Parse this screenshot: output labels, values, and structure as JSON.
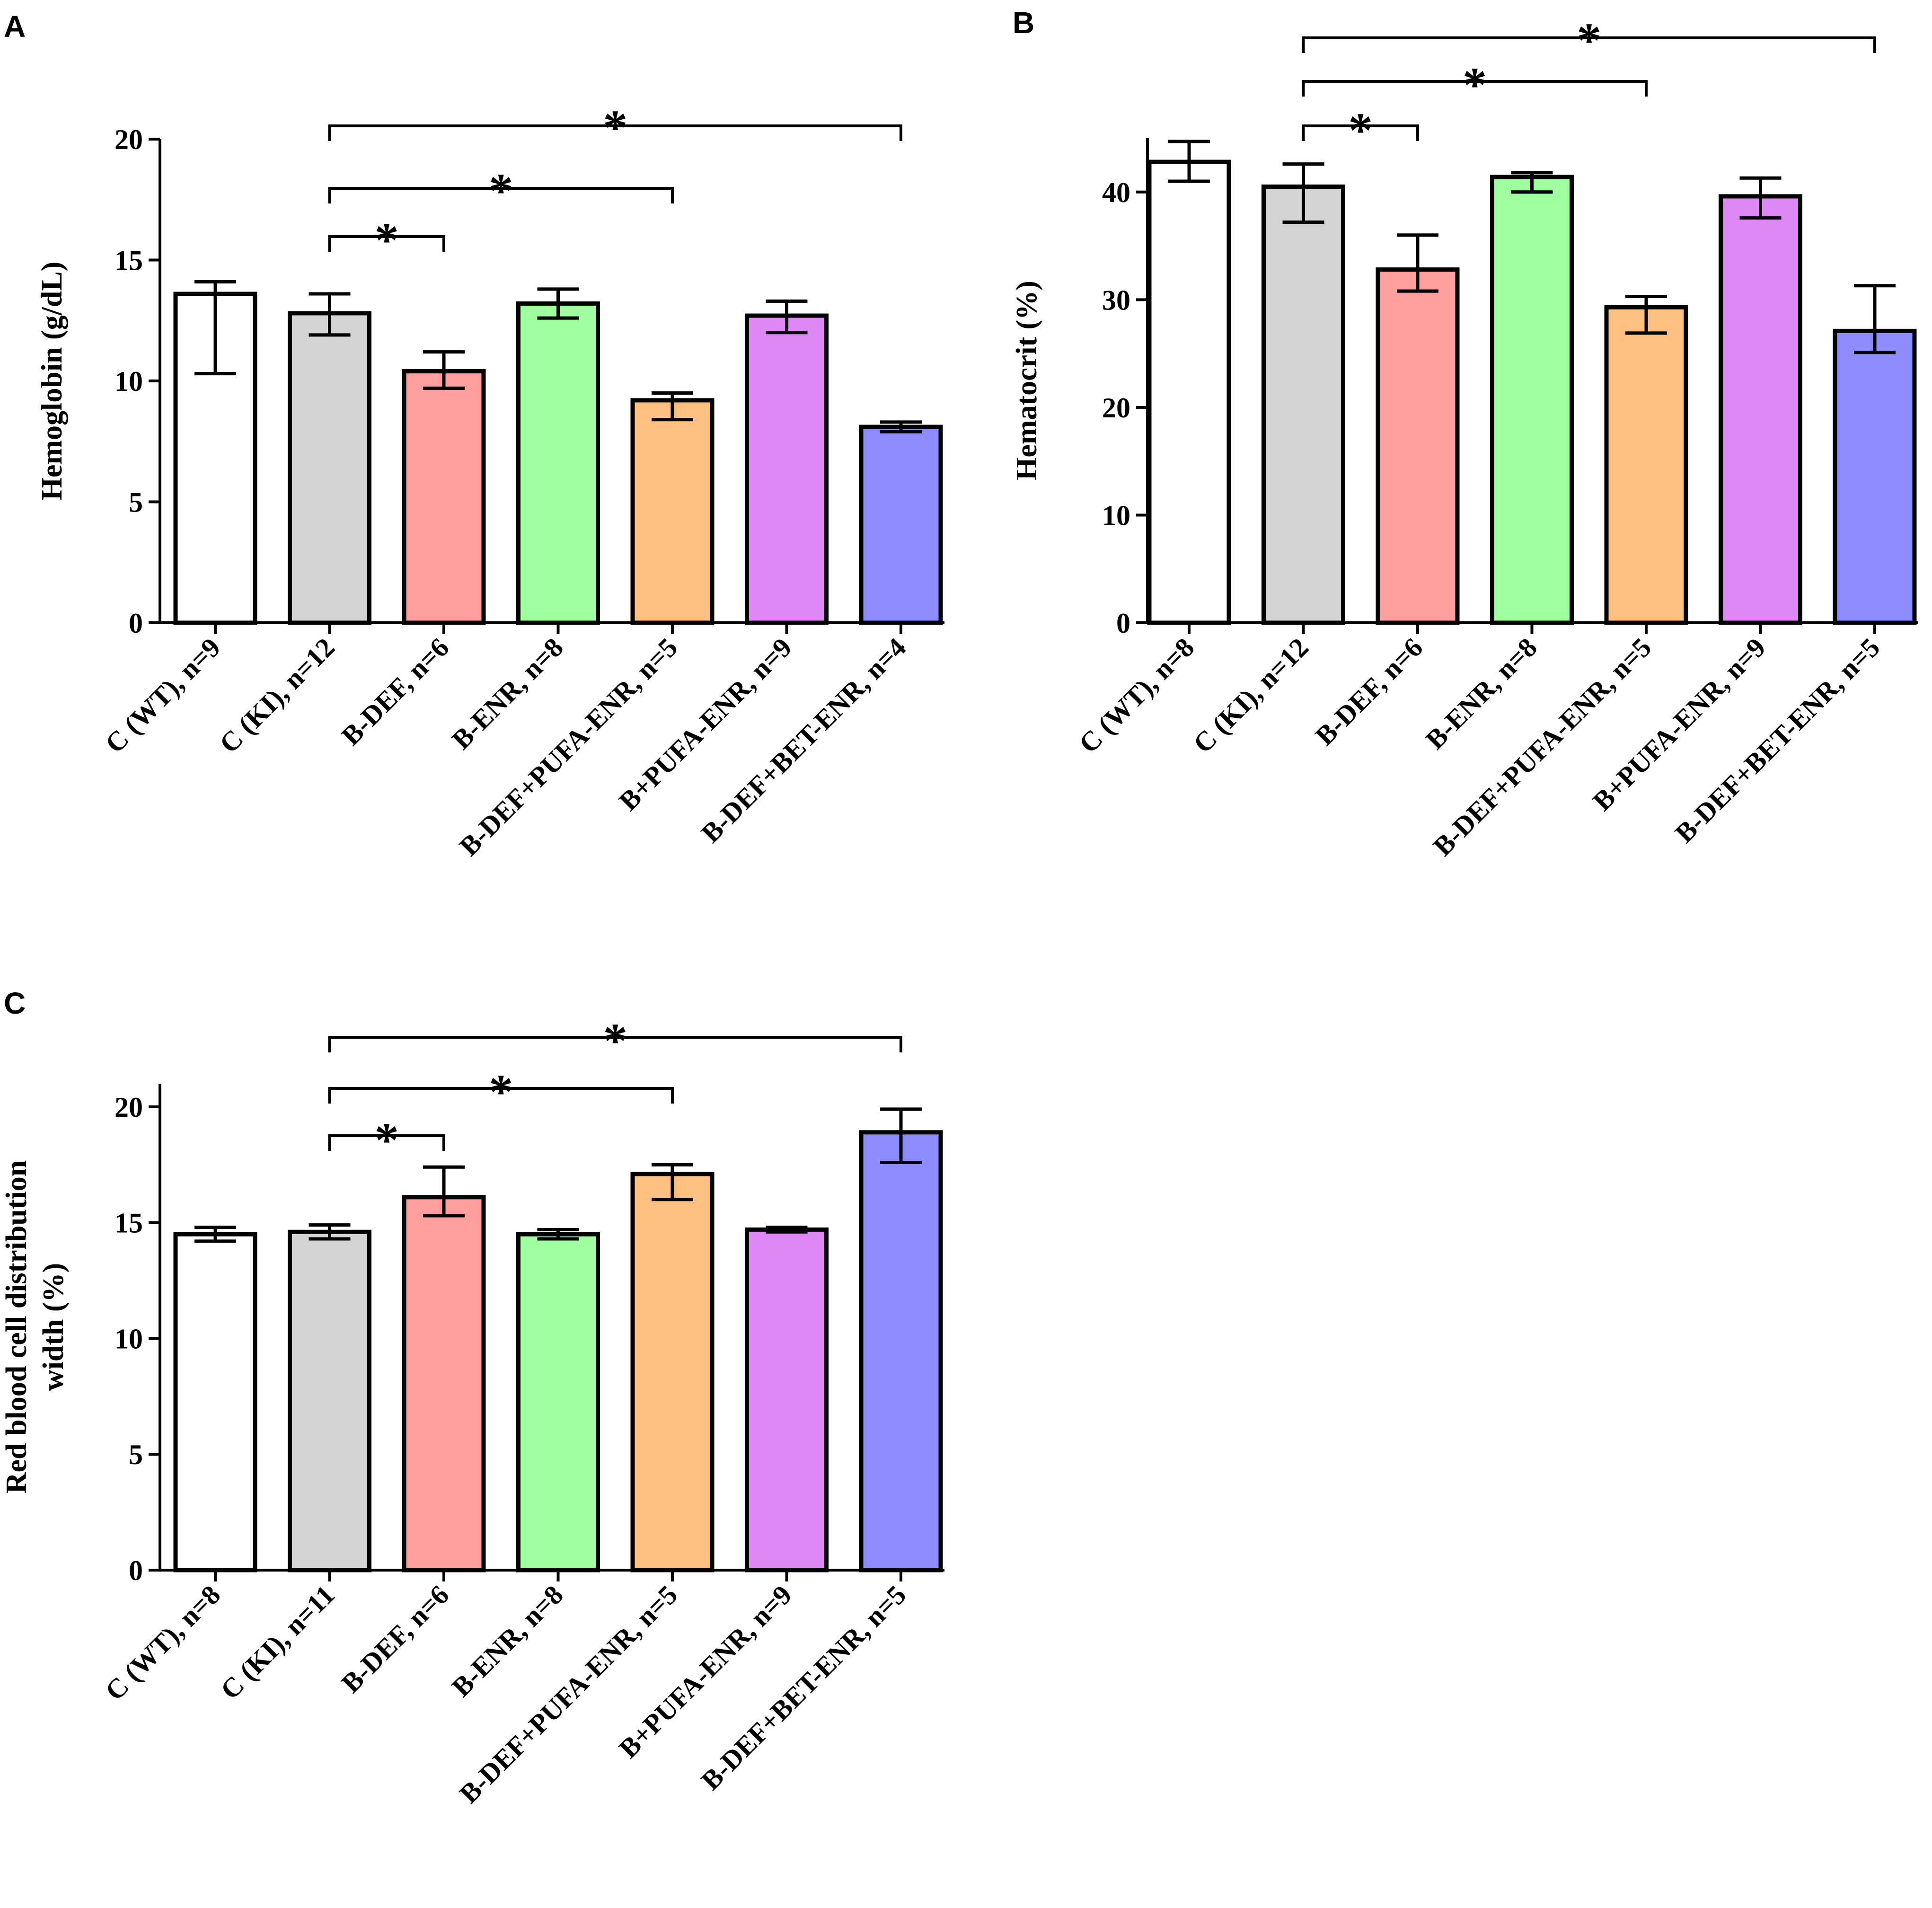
{
  "chart_data": [
    {
      "panel": "A",
      "type": "bar",
      "ylabel": "Hemoglobin (g/dL)",
      "ylim": [
        0,
        20
      ],
      "yticks": [
        0,
        5,
        10,
        15,
        20
      ],
      "categories": [
        "C (WT), n=9",
        "C (KI), n=12",
        "B-DEF, n=6",
        "B-ENR, n=8",
        "B-DEF+PUFA-ENR, n=5",
        "B+PUFA-ENR, n=9",
        "B-DEF+BET-ENR, n=4"
      ],
      "values": [
        13.6,
        12.8,
        10.4,
        13.2,
        9.2,
        12.7,
        8.1
      ],
      "error_low": [
        10.3,
        11.9,
        9.7,
        12.6,
        8.4,
        12.0,
        7.9
      ],
      "error_high": [
        14.1,
        13.6,
        11.2,
        13.8,
        9.5,
        13.3,
        8.3
      ],
      "colors": [
        "#ffffff",
        "#d4d4d4",
        "#ff9e9e",
        "#9fff9f",
        "#ffbf80",
        "#df88f5",
        "#8c8cff"
      ],
      "significance": [
        {
          "from": 1,
          "to": 2,
          "label": "*"
        },
        {
          "from": 1,
          "to": 4,
          "label": "*"
        },
        {
          "from": 1,
          "to": 6,
          "label": "*"
        }
      ]
    },
    {
      "panel": "B",
      "type": "bar",
      "ylabel": "Hematocrit (%)",
      "ylim": [
        0,
        45
      ],
      "yticks": [
        0,
        10,
        20,
        30,
        40
      ],
      "categories": [
        "C (WT), n=8",
        "C (KI), n=12",
        "B-DEF, n=6",
        "B-ENR, n=8",
        "B-DEF+PUFA-ENR, n=5",
        "B+PUFA-ENR, n=9",
        "B-DEF+BET-ENR, n=5"
      ],
      "values": [
        42.8,
        40.5,
        32.8,
        41.4,
        29.3,
        39.6,
        27.1
      ],
      "error_low": [
        41.0,
        37.2,
        30.8,
        40.0,
        26.9,
        37.6,
        25.1
      ],
      "error_high": [
        44.7,
        42.6,
        36.0,
        41.8,
        30.3,
        41.3,
        31.3
      ],
      "colors": [
        "#ffffff",
        "#d4d4d4",
        "#ff9e9e",
        "#9fff9f",
        "#ffbf80",
        "#df88f5",
        "#8c8cff"
      ],
      "significance": [
        {
          "from": 1,
          "to": 2,
          "label": "*"
        },
        {
          "from": 1,
          "to": 4,
          "label": "*"
        },
        {
          "from": 1,
          "to": 6,
          "label": "*"
        }
      ]
    },
    {
      "panel": "C",
      "type": "bar",
      "ylabel": "Red blood cell distribution width (%)",
      "ylabel_lines": [
        "Red blood cell distribution",
        "width (%)"
      ],
      "ylim": [
        0,
        21
      ],
      "yticks": [
        0,
        5,
        10,
        15,
        20
      ],
      "categories": [
        "C (WT), n=8",
        "C (KI), n=11",
        "B-DEF, n=6",
        "B-ENR, n=8",
        "B-DEF+PUFA-ENR, n=5",
        "B+PUFA-ENR, n=9",
        "B-DEF+BET-ENR, n=5"
      ],
      "values": [
        14.5,
        14.6,
        16.1,
        14.5,
        17.1,
        14.7,
        18.9
      ],
      "error_low": [
        14.2,
        14.3,
        15.3,
        14.3,
        16.0,
        14.6,
        17.6
      ],
      "error_high": [
        14.8,
        14.9,
        17.4,
        14.7,
        17.5,
        14.8,
        19.9
      ],
      "colors": [
        "#ffffff",
        "#d4d4d4",
        "#ff9e9e",
        "#9fff9f",
        "#ffbf80",
        "#df88f5",
        "#8c8cff"
      ],
      "significance": [
        {
          "from": 1,
          "to": 2,
          "label": "*"
        },
        {
          "from": 1,
          "to": 4,
          "label": "*"
        },
        {
          "from": 1,
          "to": 6,
          "label": "*"
        }
      ]
    }
  ]
}
